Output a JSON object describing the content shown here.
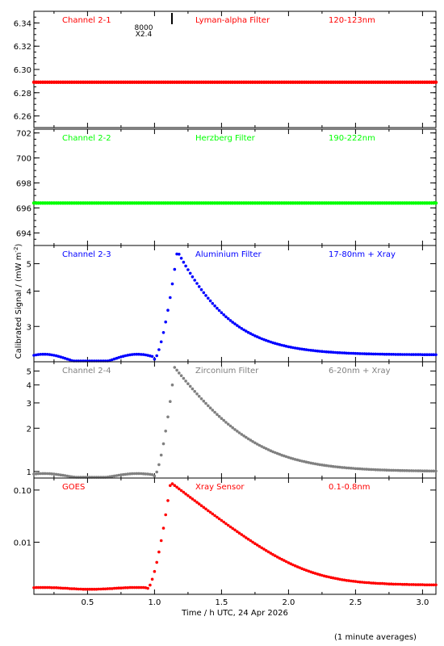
{
  "figure": {
    "ylabel": "Calibrated Signal / (mW m",
    "ylabel_sup": "-2",
    "ylabel_end": ")",
    "xlabel": "Time / h UTC, 24 Apr 2026",
    "footnote": "(1 minute averages)",
    "marker_text": [
      "8000",
      "X2.4"
    ],
    "marker_time": 1.13,
    "x_ticks": [
      "0.5",
      "1.0",
      "1.5",
      "2.0",
      "2.5",
      "3.0"
    ]
  },
  "chart_data": [
    {
      "type": "scatter",
      "channel_label": "Channel 2-1",
      "filter_label": "Lyman-alpha Filter",
      "band_label": "120-123nm",
      "color": "#ff0000",
      "xlim": [
        0.1,
        3.1
      ],
      "ylim": [
        6.25,
        6.35
      ],
      "yscale": "linear",
      "y_ticks": [
        "6.26",
        "6.28",
        "6.30",
        "6.32",
        "6.34"
      ],
      "shape": {
        "kind": "flat",
        "base": 6.289
      },
      "series": [
        {
          "values": []
        }
      ]
    },
    {
      "type": "scatter",
      "channel_label": "Channel 2-2",
      "filter_label": "Herzberg Filter",
      "band_label": "190-222nm",
      "color": "#00ff00",
      "xlim": [
        0.1,
        3.1
      ],
      "ylim": [
        693,
        702.3
      ],
      "yscale": "linear",
      "y_ticks": [
        "694",
        "696",
        "698",
        "700",
        "702"
      ],
      "shape": {
        "kind": "flat",
        "base": 696.4
      },
      "series": [
        {
          "values": []
        }
      ]
    },
    {
      "type": "scatter",
      "channel_label": "Channel 2-3",
      "filter_label": "Aluminium Filter",
      "band_label": "17-80nm + Xray",
      "color": "#0000ff",
      "xlim": [
        0.1,
        3.1
      ],
      "ylim": [
        2.25,
        5.8
      ],
      "yscale": "log",
      "y_ticks": [
        "3",
        "4",
        "5"
      ],
      "shape": {
        "kind": "flare",
        "base": 2.3,
        "peak": 5.55,
        "rise_start": 1.0,
        "peak_time": 1.17,
        "e_fold": 0.28,
        "tail": 2.38
      },
      "series": [
        {
          "values": []
        }
      ]
    },
    {
      "type": "scatter",
      "channel_label": "Channel 2-4",
      "filter_label": "Zirconium Filter",
      "band_label": "6-20nm + Xray",
      "color": "#808080",
      "xlim": [
        0.1,
        3.1
      ],
      "ylim": [
        0.9,
        5.8
      ],
      "yscale": "log",
      "y_ticks": [
        "1",
        "2",
        "3",
        "4",
        "5"
      ],
      "shape": {
        "kind": "flare",
        "base": 0.93,
        "peak": 5.3,
        "rise_start": 1.0,
        "peak_time": 1.15,
        "e_fold": 0.3,
        "tail": 1.0
      },
      "series": [
        {
          "values": []
        }
      ]
    },
    {
      "type": "scatter",
      "channel_label": "GOES",
      "filter_label": "Xray Sensor",
      "band_label": "0.1-0.8nm",
      "color": "#ff0000",
      "xlim": [
        0.1,
        3.1
      ],
      "ylim": [
        0.001,
        0.17
      ],
      "yscale": "log",
      "y_ticks": [
        "0.01",
        "0.10"
      ],
      "shape": {
        "kind": "flare",
        "base": 0.0013,
        "peak": 0.14,
        "rise_start": 0.95,
        "peak_time": 1.12,
        "e_fold": 0.22,
        "tail": 0.0015
      },
      "series": [
        {
          "values": []
        }
      ]
    }
  ]
}
